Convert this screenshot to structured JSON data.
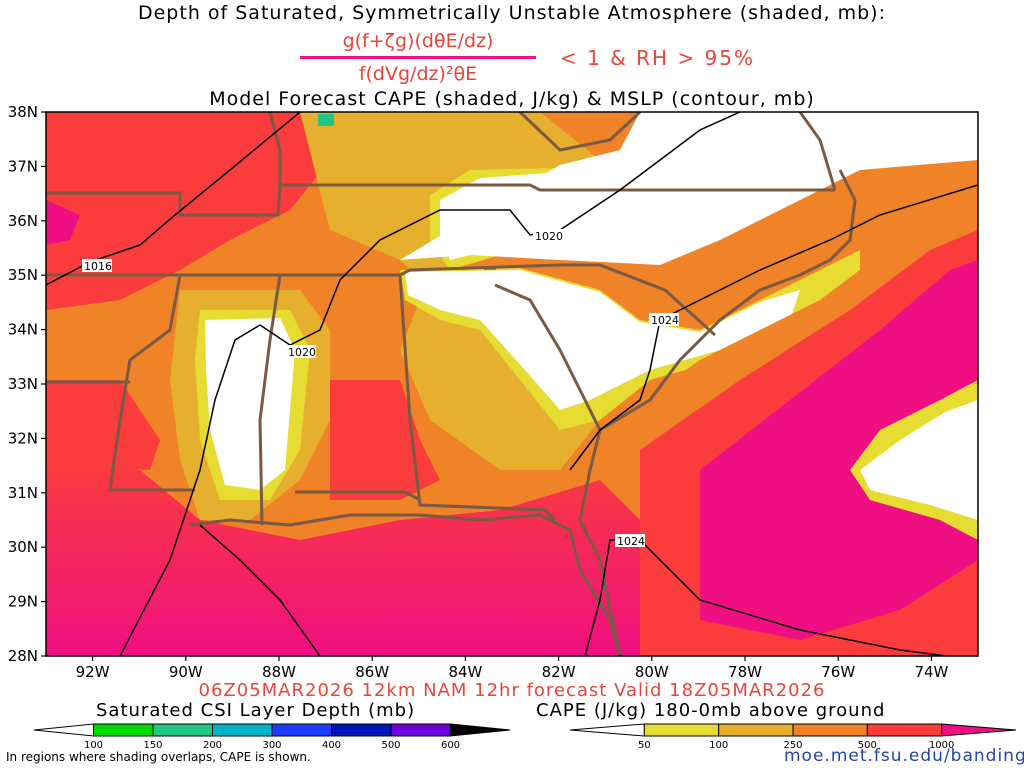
{
  "titles": {
    "line1": "Depth of Saturated, Symmetrically Unstable Atmosphere (shaded, mb):",
    "fraction_numerator": "g(f+ζg)(dθE/dz)",
    "fraction_denominator": "f(dVg/dz)²θE",
    "condition": "< 1 & RH > 95%",
    "line3": "Model Forecast CAPE (shaded, J/kg) & MSLP (contour, mb)"
  },
  "map": {
    "lat_labels": [
      "38N",
      "37N",
      "36N",
      "35N",
      "34N",
      "33N",
      "32N",
      "31N",
      "30N",
      "29N",
      "28N"
    ],
    "lon_labels": [
      "92W",
      "90W",
      "88W",
      "86W",
      "84W",
      "82W",
      "80W",
      "78W",
      "76W",
      "74W"
    ],
    "lat_range": [
      28,
      38
    ],
    "lon_range": [
      -93,
      -73
    ],
    "pressure_labels": [
      "1016",
      "1020",
      "1020",
      "1024",
      "1024"
    ],
    "colors": {
      "state_borders": "#7b5a45",
      "isobars": "#000000",
      "cape_50": "#e6dc32",
      "cape_100": "#e6af2d",
      "cape_250": "#f08228",
      "cape_500": "#fa3c3c",
      "cape_1000": "#f00f82"
    }
  },
  "run_info": "06Z05MAR2026 12km NAM 12hr forecast Valid 18Z05MAR2026",
  "colorbars": {
    "csi": {
      "title": "Saturated CSI Layer Depth (mb)",
      "labels": [
        "100",
        "150",
        "200",
        "300",
        "400",
        "500",
        "600"
      ],
      "colors": [
        "#00dc00",
        "#1ec882",
        "#00b4c8",
        "#1e3cff",
        "#0014b4",
        "#6e00dc",
        "#000000"
      ]
    },
    "cape": {
      "title": "CAPE (J/kg) 180-0mb above ground",
      "labels": [
        "50",
        "100",
        "250",
        "500",
        "1000"
      ],
      "colors": [
        "#e6dc32",
        "#e6af2d",
        "#f08228",
        "#fa3c3c",
        "#f00f82"
      ]
    }
  },
  "note": "In regions where shading overlaps, CAPE is shown.",
  "url": "moe.met.fsu.edu/banding"
}
